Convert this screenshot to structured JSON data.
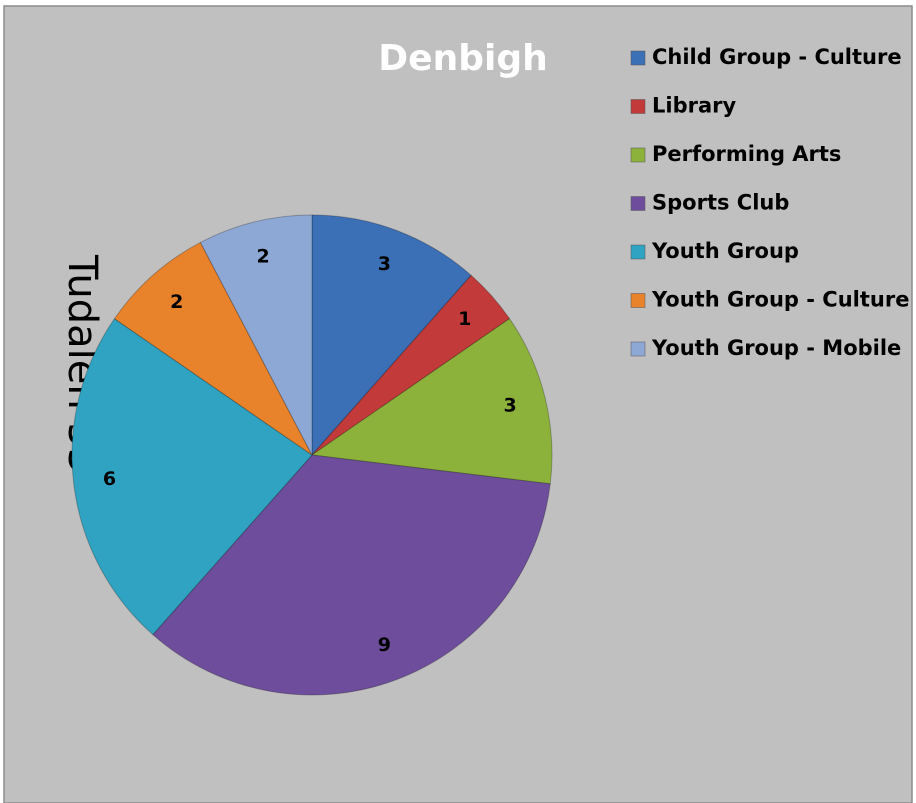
{
  "chart_data": {
    "type": "pie",
    "title": "Denbigh",
    "annotation": "Tudalen 53",
    "categories": [
      "Child Group - Culture",
      "Library",
      "Performing Arts",
      "Sports Club",
      "Youth Group",
      "Youth Group - Culture",
      "Youth Group - Mobile"
    ],
    "values": [
      3,
      1,
      3,
      9,
      6,
      2,
      2
    ],
    "colors": [
      "#3b6fb6",
      "#c23a3a",
      "#8cb23c",
      "#6e4e9c",
      "#2fa3c1",
      "#e8832c",
      "#8ea8d6"
    ],
    "legend": "right"
  }
}
